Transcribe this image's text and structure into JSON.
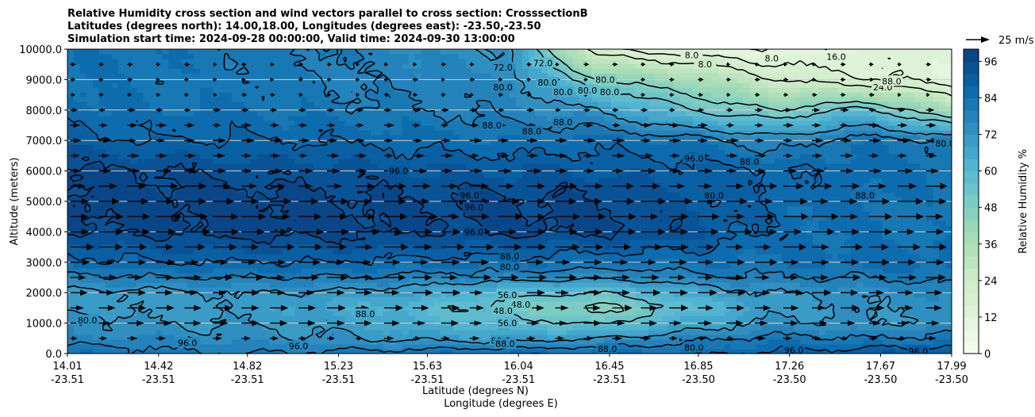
{
  "chart_data": {
    "type": "heatmap",
    "title_lines": [
      "Relative Humidity cross section and wind vectors parallel to cross section: CrosssectionB",
      "Latitudes (degrees north): 14.00,18.00, Longitudes (degrees east): -23.50,-23.50",
      "Simulation start time: 2024-09-28 00:00:00, Valid time: 2024-09-30 13:00:00"
    ],
    "xlabel_1": "Latitude (degrees N)",
    "xlabel_2": "Longitude (degrees E)",
    "ylabel": "Altitude (meters)",
    "colorbar_label": "Relative Humidity %",
    "quiver_key_label": "25 m/s",
    "x_tick_labels": [
      {
        "lat": "14.01",
        "lon": "-23.51"
      },
      {
        "lat": "14.42",
        "lon": "-23.51"
      },
      {
        "lat": "14.82",
        "lon": "-23.51"
      },
      {
        "lat": "15.23",
        "lon": "-23.51"
      },
      {
        "lat": "15.63",
        "lon": "-23.51"
      },
      {
        "lat": "16.04",
        "lon": "-23.51"
      },
      {
        "lat": "16.45",
        "lon": "-23.51"
      },
      {
        "lat": "16.85",
        "lon": "-23.50"
      },
      {
        "lat": "17.26",
        "lon": "-23.50"
      },
      {
        "lat": "17.67",
        "lon": "-23.50"
      },
      {
        "lat": "17.99",
        "lon": "-23.50"
      }
    ],
    "x_tick_positions": [
      14.01,
      14.42,
      14.82,
      15.23,
      15.63,
      16.04,
      16.45,
      16.85,
      17.26,
      17.67,
      17.99
    ],
    "xlim": [
      14.01,
      17.99
    ],
    "ylim": [
      0,
      10000
    ],
    "y_ticks": [
      0,
      1000,
      2000,
      3000,
      4000,
      5000,
      6000,
      7000,
      8000,
      9000,
      10000
    ],
    "y_tick_labels": [
      "0.0",
      "1000.0",
      "2000.0",
      "3000.0",
      "4000.0",
      "5000.0",
      "6000.0",
      "7000.0",
      "8000.0",
      "9000.0",
      "10000.0"
    ],
    "colorbar_ticks": [
      0,
      12,
      24,
      36,
      48,
      60,
      72,
      84,
      96
    ],
    "colorbar_tick_labels": [
      "0",
      "12",
      "24",
      "36",
      "48",
      "60",
      "72",
      "84",
      "96"
    ],
    "colorbar_range": [
      0,
      100
    ],
    "colormap": [
      "#f7fcf0",
      "#e0f3db",
      "#ccebc5",
      "#a8ddb5",
      "#7bccc4",
      "#4eb3d3",
      "#2b8cbe",
      "#0868ac",
      "#084081"
    ],
    "grid": "horizontal",
    "rh_field": {
      "lat": [
        14.01,
        14.4,
        14.8,
        15.2,
        15.6,
        16.0,
        16.4,
        16.8,
        17.2,
        17.6,
        17.99
      ],
      "alt": [
        0,
        500,
        1000,
        1500,
        2000,
        2500,
        3000,
        4000,
        5000,
        6000,
        7000,
        8000,
        9000,
        10000
      ],
      "values": [
        [
          84,
          82,
          80,
          82,
          84,
          86,
          86,
          86,
          90,
          92,
          94
        ],
        [
          76,
          76,
          74,
          72,
          70,
          68,
          72,
          78,
          82,
          80,
          82
        ],
        [
          74,
          72,
          72,
          70,
          64,
          60,
          54,
          66,
          74,
          72,
          74
        ],
        [
          72,
          70,
          70,
          66,
          60,
          52,
          44,
          58,
          70,
          72,
          74
        ],
        [
          70,
          70,
          72,
          70,
          68,
          58,
          56,
          66,
          72,
          74,
          76
        ],
        [
          78,
          80,
          80,
          80,
          78,
          76,
          74,
          78,
          80,
          80,
          82
        ],
        [
          86,
          88,
          88,
          88,
          86,
          86,
          84,
          84,
          84,
          86,
          86
        ],
        [
          96,
          97,
          98,
          98,
          96,
          97,
          97,
          94,
          86,
          84,
          82
        ],
        [
          98,
          98,
          98,
          97,
          96,
          97,
          96,
          92,
          86,
          84,
          82
        ],
        [
          97,
          96,
          95,
          94,
          92,
          92,
          92,
          90,
          88,
          86,
          84
        ],
        [
          90,
          88,
          88,
          88,
          86,
          84,
          86,
          84,
          76,
          84,
          80
        ],
        [
          86,
          84,
          84,
          82,
          80,
          78,
          72,
          56,
          48,
          60,
          36
        ],
        [
          84,
          82,
          82,
          80,
          78,
          76,
          48,
          40,
          24,
          16,
          12
        ],
        [
          84,
          84,
          82,
          80,
          76,
          72,
          18,
          10,
          8,
          12,
          14
        ]
      ]
    },
    "contour_levels": [
      8,
      16,
      24,
      48,
      56,
      72,
      80,
      88,
      96
    ],
    "contour_labels": [
      {
        "text": "80.0",
        "lat": 14.1,
        "alt": 1100
      },
      {
        "text": "96.0",
        "lat": 14.55,
        "alt": 350
      },
      {
        "text": "96.0",
        "lat": 15.05,
        "alt": 250
      },
      {
        "text": "88.0",
        "lat": 15.35,
        "alt": 1300
      },
      {
        "text": "96.0",
        "lat": 15.5,
        "alt": 6000
      },
      {
        "text": "96.0",
        "lat": 15.82,
        "alt": 5200
      },
      {
        "text": "96.0",
        "lat": 15.84,
        "alt": 4800
      },
      {
        "text": "96.0",
        "lat": 15.84,
        "alt": 4000
      },
      {
        "text": "88.0",
        "lat": 15.92,
        "alt": 7500
      },
      {
        "text": "88.0",
        "lat": 16.1,
        "alt": 7300
      },
      {
        "text": "88.0",
        "lat": 16.24,
        "alt": 7600
      },
      {
        "text": "88.0",
        "lat": 16.0,
        "alt": 3200
      },
      {
        "text": "80.0",
        "lat": 16.0,
        "alt": 2850
      },
      {
        "text": "56.0",
        "lat": 15.99,
        "alt": 1930
      },
      {
        "text": "48.0",
        "lat": 16.05,
        "alt": 1620
      },
      {
        "text": "48.0",
        "lat": 15.97,
        "alt": 1400
      },
      {
        "text": "56.0",
        "lat": 15.99,
        "alt": 1000
      },
      {
        "text": "80.0",
        "lat": 15.96,
        "alt": 430
      },
      {
        "text": "88.0",
        "lat": 15.98,
        "alt": 320
      },
      {
        "text": "80.0",
        "lat": 16.83,
        "alt": 200
      },
      {
        "text": "88.0",
        "lat": 16.44,
        "alt": 150
      },
      {
        "text": "96.0",
        "lat": 17.28,
        "alt": 120
      },
      {
        "text": "96.0",
        "lat": 17.84,
        "alt": 80
      },
      {
        "text": "72.0",
        "lat": 15.97,
        "alt": 9400
      },
      {
        "text": "72.0",
        "lat": 16.15,
        "alt": 9550
      },
      {
        "text": "80.0",
        "lat": 15.97,
        "alt": 8750
      },
      {
        "text": "80.0",
        "lat": 16.17,
        "alt": 8900
      },
      {
        "text": "80.0",
        "lat": 16.24,
        "alt": 8600
      },
      {
        "text": "80.0",
        "lat": 16.35,
        "alt": 8650
      },
      {
        "text": "80.0",
        "lat": 16.45,
        "alt": 8600
      },
      {
        "text": "80.0",
        "lat": 16.43,
        "alt": 9000
      },
      {
        "text": "8.0",
        "lat": 16.82,
        "alt": 9800
      },
      {
        "text": "8.0",
        "lat": 16.88,
        "alt": 9500
      },
      {
        "text": "8.0",
        "lat": 17.18,
        "alt": 9700
      },
      {
        "text": "16.0",
        "lat": 17.47,
        "alt": 9750
      },
      {
        "text": "24.0",
        "lat": 17.68,
        "alt": 8750
      },
      {
        "text": "88.0",
        "lat": 17.72,
        "alt": 8950
      },
      {
        "text": "96.0",
        "lat": 16.83,
        "alt": 6400
      },
      {
        "text": "88.0",
        "lat": 17.08,
        "alt": 6300
      },
      {
        "text": "80.0",
        "lat": 16.92,
        "alt": 5200
      },
      {
        "text": "88.0",
        "lat": 17.6,
        "alt": 5200
      },
      {
        "text": "80.0",
        "lat": 17.96,
        "alt": 6900
      }
    ],
    "wind": {
      "note": "Wind vectors parallel to the cross section point toward increasing latitude; magnitudes in m/s.",
      "alt": [
        500,
        1000,
        1500,
        2000,
        2500,
        3000,
        3500,
        4000,
        4500,
        5000,
        5500,
        6000,
        6500,
        7000,
        7500,
        8000,
        8500,
        9000,
        9500
      ],
      "speed_ms": [
        8,
        14,
        16,
        16,
        18,
        18,
        20,
        21,
        22,
        21,
        18,
        12,
        10,
        10,
        8,
        6,
        4,
        4,
        4
      ]
    }
  }
}
